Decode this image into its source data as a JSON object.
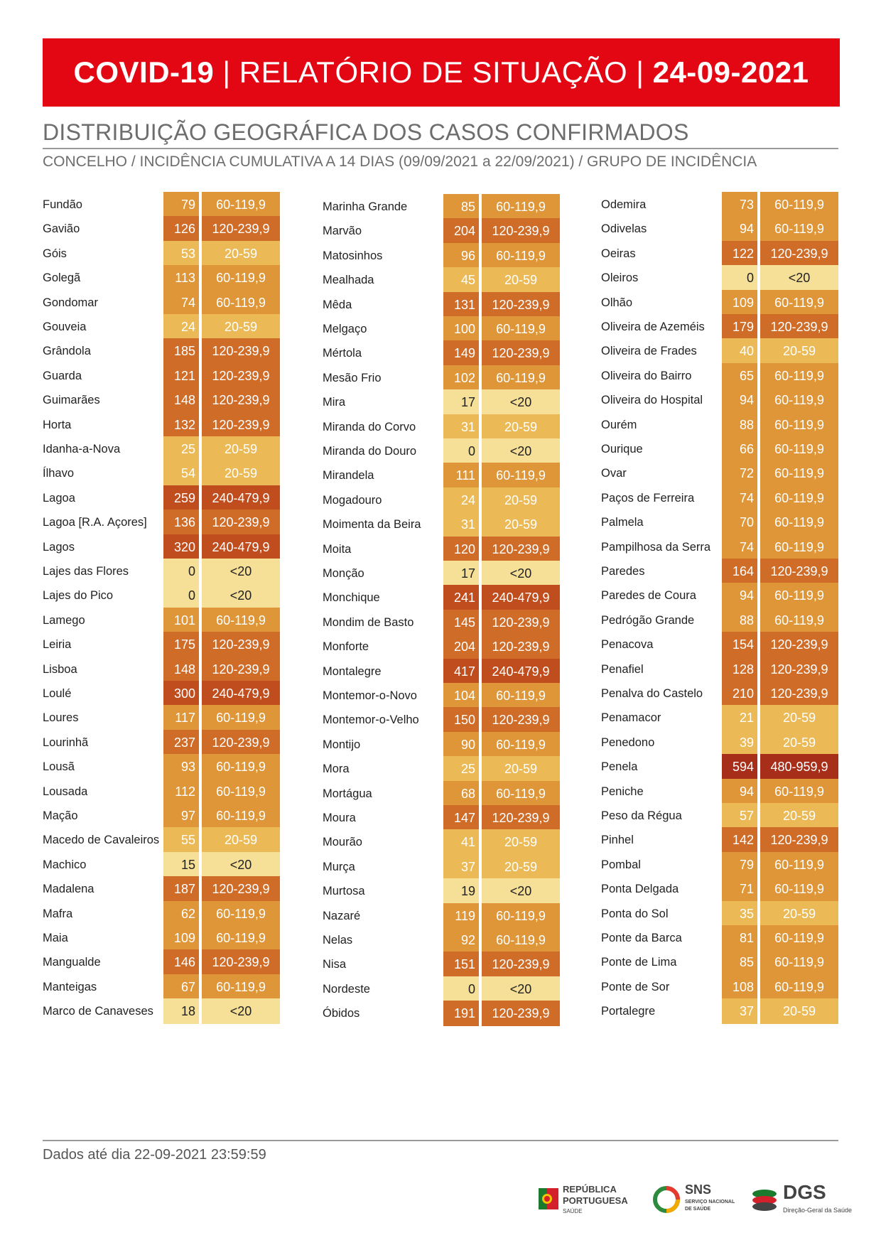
{
  "header": {
    "title_bold": "COVID-19",
    "title_mid": "RELATÓRIO DE SITUAÇÃO",
    "title_date": "24-09-2021",
    "separator": "|"
  },
  "section_title": "DISTRIBUIÇÃO GEOGRÁFICA DOS CASOS CONFIRMADOS",
  "section_subtitle": "CONCELHO / INCIDÊNCIA CUMULATIVA A 14 DIAS (09/09/2021 a 22/09/2021) / GRUPO DE INCIDÊNCIA",
  "colors": {
    "<20": "#f6df96",
    "20-59": "#ebba56",
    "60-119,9": "#de9638",
    "120-239,9": "#cf6c28",
    "240-479,9": "#c04d1e",
    "480-959,9": "#a72f1a",
    "banner": "#e30613"
  },
  "columns": [
    [
      {
        "name": "Fundão",
        "value": "79",
        "group": "60-119,9"
      },
      {
        "name": "Gavião",
        "value": "126",
        "group": "120-239,9"
      },
      {
        "name": "Góis",
        "value": "53",
        "group": "20-59"
      },
      {
        "name": "Golegã",
        "value": "113",
        "group": "60-119,9"
      },
      {
        "name": "Gondomar",
        "value": "74",
        "group": "60-119,9"
      },
      {
        "name": "Gouveia",
        "value": "24",
        "group": "20-59"
      },
      {
        "name": "Grândola",
        "value": "185",
        "group": "120-239,9"
      },
      {
        "name": "Guarda",
        "value": "121",
        "group": "120-239,9"
      },
      {
        "name": "Guimarães",
        "value": "148",
        "group": "120-239,9"
      },
      {
        "name": "Horta",
        "value": "132",
        "group": "120-239,9"
      },
      {
        "name": "Idanha-a-Nova",
        "value": "25",
        "group": "20-59"
      },
      {
        "name": "Ílhavo",
        "value": "54",
        "group": "20-59"
      },
      {
        "name": "Lagoa",
        "value": "259",
        "group": "240-479,9"
      },
      {
        "name": "Lagoa [R.A. Açores]",
        "value": "136",
        "group": "120-239,9"
      },
      {
        "name": "Lagos",
        "value": "320",
        "group": "240-479,9"
      },
      {
        "name": "Lajes das Flores",
        "value": "0",
        "group": "<20"
      },
      {
        "name": "Lajes do Pico",
        "value": "0",
        "group": "<20"
      },
      {
        "name": "Lamego",
        "value": "101",
        "group": "60-119,9"
      },
      {
        "name": "Leiria",
        "value": "175",
        "group": "120-239,9"
      },
      {
        "name": "Lisboa",
        "value": "148",
        "group": "120-239,9"
      },
      {
        "name": "Loulé",
        "value": "300",
        "group": "240-479,9"
      },
      {
        "name": "Loures",
        "value": "117",
        "group": "60-119,9"
      },
      {
        "name": "Lourinhã",
        "value": "237",
        "group": "120-239,9"
      },
      {
        "name": "Lousã",
        "value": "93",
        "group": "60-119,9"
      },
      {
        "name": "Lousada",
        "value": "112",
        "group": "60-119,9"
      },
      {
        "name": "Mação",
        "value": "97",
        "group": "60-119,9"
      },
      {
        "name": "Macedo de Cavaleiros",
        "value": "55",
        "group": "20-59"
      },
      {
        "name": "Machico",
        "value": "15",
        "group": "<20"
      },
      {
        "name": "Madalena",
        "value": "187",
        "group": "120-239,9"
      },
      {
        "name": "Mafra",
        "value": "62",
        "group": "60-119,9"
      },
      {
        "name": "Maia",
        "value": "109",
        "group": "60-119,9"
      },
      {
        "name": "Mangualde",
        "value": "146",
        "group": "120-239,9"
      },
      {
        "name": "Manteigas",
        "value": "67",
        "group": "60-119,9"
      },
      {
        "name": "Marco de Canaveses",
        "value": "18",
        "group": "<20"
      }
    ],
    [
      {
        "name": "Marinha Grande",
        "value": "85",
        "group": "60-119,9"
      },
      {
        "name": "Marvão",
        "value": "204",
        "group": "120-239,9"
      },
      {
        "name": "Matosinhos",
        "value": "96",
        "group": "60-119,9"
      },
      {
        "name": "Mealhada",
        "value": "45",
        "group": "20-59"
      },
      {
        "name": "Mêda",
        "value": "131",
        "group": "120-239,9"
      },
      {
        "name": "Melgaço",
        "value": "100",
        "group": "60-119,9"
      },
      {
        "name": "Mértola",
        "value": "149",
        "group": "120-239,9"
      },
      {
        "name": "Mesão Frio",
        "value": "102",
        "group": "60-119,9"
      },
      {
        "name": "Mira",
        "value": "17",
        "group": "<20"
      },
      {
        "name": "Miranda do Corvo",
        "value": "31",
        "group": "20-59"
      },
      {
        "name": "Miranda do Douro",
        "value": "0",
        "group": "<20"
      },
      {
        "name": "Mirandela",
        "value": "111",
        "group": "60-119,9"
      },
      {
        "name": "Mogadouro",
        "value": "24",
        "group": "20-59"
      },
      {
        "name": "Moimenta da Beira",
        "value": "31",
        "group": "20-59"
      },
      {
        "name": "Moita",
        "value": "120",
        "group": "120-239,9"
      },
      {
        "name": "Monção",
        "value": "17",
        "group": "<20"
      },
      {
        "name": "Monchique",
        "value": "241",
        "group": "240-479,9"
      },
      {
        "name": "Mondim de Basto",
        "value": "145",
        "group": "120-239,9"
      },
      {
        "name": "Monforte",
        "value": "204",
        "group": "120-239,9"
      },
      {
        "name": "Montalegre",
        "value": "417",
        "group": "240-479,9"
      },
      {
        "name": "Montemor-o-Novo",
        "value": "104",
        "group": "60-119,9"
      },
      {
        "name": "Montemor-o-Velho",
        "value": "150",
        "group": "120-239,9"
      },
      {
        "name": "Montijo",
        "value": "90",
        "group": "60-119,9"
      },
      {
        "name": "Mora",
        "value": "25",
        "group": "20-59"
      },
      {
        "name": "Mortágua",
        "value": "68",
        "group": "60-119,9"
      },
      {
        "name": "Moura",
        "value": "147",
        "group": "120-239,9"
      },
      {
        "name": "Mourão",
        "value": "41",
        "group": "20-59"
      },
      {
        "name": "Murça",
        "value": "37",
        "group": "20-59"
      },
      {
        "name": "Murtosa",
        "value": "19",
        "group": "<20"
      },
      {
        "name": "Nazaré",
        "value": "119",
        "group": "60-119,9"
      },
      {
        "name": "Nelas",
        "value": "92",
        "group": "60-119,9"
      },
      {
        "name": "Nisa",
        "value": "151",
        "group": "120-239,9"
      },
      {
        "name": "Nordeste",
        "value": "0",
        "group": "<20"
      },
      {
        "name": "Óbidos",
        "value": "191",
        "group": "120-239,9"
      }
    ],
    [
      {
        "name": "Odemira",
        "value": "73",
        "group": "60-119,9"
      },
      {
        "name": "Odivelas",
        "value": "94",
        "group": "60-119,9"
      },
      {
        "name": "Oeiras",
        "value": "122",
        "group": "120-239,9"
      },
      {
        "name": "Oleiros",
        "value": "0",
        "group": "<20"
      },
      {
        "name": "Olhão",
        "value": "109",
        "group": "60-119,9"
      },
      {
        "name": "Oliveira de Azeméis",
        "value": "179",
        "group": "120-239,9"
      },
      {
        "name": "Oliveira de Frades",
        "value": "40",
        "group": "20-59"
      },
      {
        "name": "Oliveira do Bairro",
        "value": "65",
        "group": "60-119,9"
      },
      {
        "name": "Oliveira do Hospital",
        "value": "94",
        "group": "60-119,9"
      },
      {
        "name": "Ourém",
        "value": "88",
        "group": "60-119,9"
      },
      {
        "name": "Ourique",
        "value": "66",
        "group": "60-119,9"
      },
      {
        "name": "Ovar",
        "value": "72",
        "group": "60-119,9"
      },
      {
        "name": "Paços de Ferreira",
        "value": "74",
        "group": "60-119,9"
      },
      {
        "name": "Palmela",
        "value": "70",
        "group": "60-119,9"
      },
      {
        "name": "Pampilhosa da Serra",
        "value": "74",
        "group": "60-119,9"
      },
      {
        "name": "Paredes",
        "value": "164",
        "group": "120-239,9"
      },
      {
        "name": "Paredes de Coura",
        "value": "94",
        "group": "60-119,9"
      },
      {
        "name": "Pedrógão Grande",
        "value": "88",
        "group": "60-119,9"
      },
      {
        "name": "Penacova",
        "value": "154",
        "group": "120-239,9"
      },
      {
        "name": "Penafiel",
        "value": "128",
        "group": "120-239,9"
      },
      {
        "name": "Penalva do Castelo",
        "value": "210",
        "group": "120-239,9"
      },
      {
        "name": "Penamacor",
        "value": "21",
        "group": "20-59"
      },
      {
        "name": "Penedono",
        "value": "39",
        "group": "20-59"
      },
      {
        "name": "Penela",
        "value": "594",
        "group": "480-959,9"
      },
      {
        "name": "Peniche",
        "value": "94",
        "group": "60-119,9"
      },
      {
        "name": "Peso da Régua",
        "value": "57",
        "group": "20-59"
      },
      {
        "name": "Pinhel",
        "value": "142",
        "group": "120-239,9"
      },
      {
        "name": "Pombal",
        "value": "79",
        "group": "60-119,9"
      },
      {
        "name": "Ponta Delgada",
        "value": "71",
        "group": "60-119,9"
      },
      {
        "name": "Ponta do Sol",
        "value": "35",
        "group": "20-59"
      },
      {
        "name": "Ponte da Barca",
        "value": "81",
        "group": "60-119,9"
      },
      {
        "name": "Ponte de Lima",
        "value": "85",
        "group": "60-119,9"
      },
      {
        "name": "Ponte de Sor",
        "value": "108",
        "group": "60-119,9"
      },
      {
        "name": "Portalegre",
        "value": "37",
        "group": "20-59"
      }
    ]
  ],
  "footer": {
    "note": "Dados até dia 22-09-2021 23:59:59"
  },
  "logos": {
    "republica": {
      "line1": "REPÚBLICA",
      "line2": "PORTUGUESA",
      "line3": "SAÚDE"
    },
    "sns": {
      "line1": "SNS",
      "line2": "SERVIÇO NACIONAL",
      "line3": "DE SAÚDE"
    },
    "dgs": {
      "line1": "DGS",
      "line2": "Direção-Geral da Saúde"
    }
  }
}
